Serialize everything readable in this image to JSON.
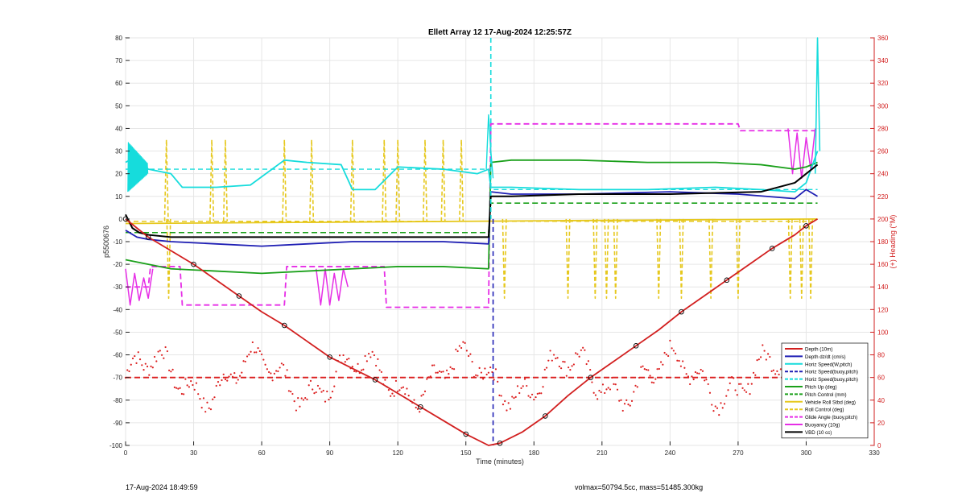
{
  "chart_data": {
    "type": "line",
    "title": "Ellett Array 12 17-Aug-2024 12:25:57Z",
    "xlabel": "Time (minutes)",
    "ylabel": "p5500676",
    "y2label": "(+) Heading (°M)",
    "xlim": [
      0,
      330
    ],
    "ylim": [
      -100,
      80
    ],
    "y2lim": [
      0,
      360
    ],
    "xticks": [
      "0",
      "30",
      "60",
      "90",
      "120",
      "150",
      "180",
      "210",
      "240",
      "270",
      "300",
      "330"
    ],
    "yticks": [
      "80",
      "70",
      "60",
      "50",
      "40",
      "30",
      "20",
      "10",
      "0",
      "-10",
      "-20",
      "-30",
      "-40",
      "-50",
      "-60",
      "-70",
      "-80",
      "-90",
      "-100"
    ],
    "y2ticks": [
      "360",
      "340",
      "320",
      "300",
      "280",
      "260",
      "240",
      "220",
      "200",
      "180",
      "160",
      "140",
      "120",
      "100",
      "80",
      "60",
      "40",
      "20",
      "0"
    ],
    "grid": true,
    "legend_position": "bottom-right",
    "colors": {
      "depth": "#d21f1f",
      "dzdt": "#1f1fb4",
      "hspeed": "#16dcdc",
      "pitch": "#1aa01a",
      "roll": "#e6c81e",
      "glide": "#e62ee6",
      "vbd": "#000000",
      "heading": "#dc1e1e",
      "right_axis": "#d21f1f"
    },
    "legend": [
      {
        "label": "Depth (10m)",
        "color": "#d21f1f",
        "style": "solid"
      },
      {
        "label": "Depth dz/dt (cm/s)",
        "color": "#1f1fb4",
        "style": "solid"
      },
      {
        "label": "Horiz Speed(W,pitch)",
        "color": "#16dcdc",
        "style": "solid"
      },
      {
        "label": "Horiz Speed(buoy,pitch)",
        "color": "#1f1fb4",
        "style": "dashed"
      },
      {
        "label": "Horiz Speed(buoy,pitch)",
        "color": "#16dcdc",
        "style": "dashed"
      },
      {
        "label": "Pitch Up (deg)",
        "color": "#1aa01a",
        "style": "solid"
      },
      {
        "label": "Pitch Control (mm)",
        "color": "#1aa01a",
        "style": "dashed"
      },
      {
        "label": "Vehicle Roll Stbd (deg)",
        "color": "#e6c81e",
        "style": "solid"
      },
      {
        "label": "Roll Control (deg)",
        "color": "#e6c81e",
        "style": "dashed"
      },
      {
        "label": "Glide Angle (buoy,pitch)",
        "color": "#e62ee6",
        "style": "dashed"
      },
      {
        "label": "Buoyancy (10g)",
        "color": "#e62ee6",
        "style": "solid"
      },
      {
        "label": "VBD (10 cc)",
        "color": "#000000",
        "style": "solid"
      }
    ],
    "depth_profile": {
      "x": [
        0,
        5,
        10,
        20,
        30,
        40,
        50,
        60,
        70,
        80,
        90,
        100,
        110,
        120,
        130,
        140,
        150,
        160,
        165,
        175,
        185,
        195,
        205,
        215,
        225,
        235,
        245,
        255,
        265,
        275,
        285,
        295,
        300,
        305
      ],
      "y": [
        0,
        -4,
        -8,
        -14,
        -20,
        -27,
        -34,
        -41,
        -47,
        -54,
        -61,
        -66,
        -71,
        -77,
        -83,
        -89,
        -95,
        -100,
        -99,
        -94,
        -87,
        -78,
        -70,
        -63,
        -56,
        -49,
        -41,
        -34,
        -27,
        -20,
        -13,
        -7,
        -3,
        0
      ]
    },
    "vbd": {
      "x": [
        0,
        3,
        6,
        10,
        20,
        40,
        60,
        80,
        100,
        120,
        140,
        160,
        161,
        170,
        200,
        240,
        280,
        295,
        300,
        305
      ],
      "y": [
        2,
        -4,
        -6,
        -7,
        -8,
        -8,
        -8,
        -8,
        -8,
        -8,
        -8,
        -8,
        10,
        10,
        11,
        11,
        12,
        16,
        20,
        24
      ]
    },
    "dzdt": {
      "x": [
        0,
        5,
        10,
        20,
        40,
        60,
        80,
        100,
        120,
        140,
        160,
        161,
        170,
        200,
        240,
        270,
        295,
        300,
        305
      ],
      "y": [
        -5,
        -8,
        -9,
        -10,
        -11,
        -12,
        -11,
        -10,
        -10,
        -10,
        -11,
        12,
        11,
        11,
        12,
        11,
        9,
        13,
        10
      ]
    },
    "pitch_up": {
      "x": [
        0,
        10,
        20,
        40,
        60,
        80,
        100,
        120,
        140,
        160,
        161,
        170,
        200,
        230,
        260,
        280,
        295,
        300,
        305
      ],
      "y": [
        -18,
        -20,
        -22,
        -23,
        -24,
        -23,
        -22,
        -21,
        -21,
        -22,
        25,
        26,
        26,
        25,
        25,
        24,
        22,
        23,
        25
      ]
    },
    "pitch_control": {
      "x": [
        0,
        160,
        161,
        305
      ],
      "y": [
        -6,
        -6,
        7,
        7
      ]
    },
    "hspeed_w": {
      "x": [
        0,
        5,
        10,
        20,
        25,
        40,
        55,
        70,
        80,
        95,
        100,
        110,
        120,
        140,
        155,
        160,
        161,
        170,
        200,
        230,
        260,
        280,
        295,
        300,
        305
      ],
      "y": [
        25,
        28,
        22,
        20,
        14,
        14,
        15,
        26,
        25,
        24,
        13,
        13,
        23,
        22,
        20,
        22,
        14,
        14,
        13,
        13,
        14,
        13,
        12,
        16,
        30
      ]
    },
    "hspeed_buoy": {
      "x": [
        0,
        160,
        161,
        305
      ],
      "y": [
        22,
        22,
        13,
        13
      ]
    },
    "glide_angle": {
      "x": [
        0,
        10,
        11,
        24,
        25,
        70,
        71,
        114,
        115,
        160,
        161,
        270,
        271,
        305
      ],
      "y": [
        -30,
        -30,
        -21,
        -21,
        -38,
        -38,
        -21,
        -21,
        -39,
        -39,
        42,
        42,
        39,
        39
      ]
    },
    "roll": {
      "x": [
        0,
        305
      ],
      "y": [
        -2,
        0
      ]
    },
    "heading_mean": 60
  }
}
